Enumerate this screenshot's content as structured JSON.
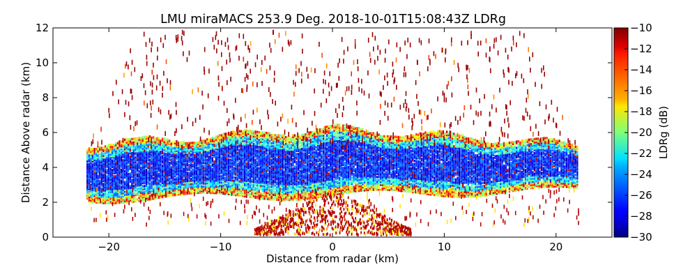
{
  "chart_data": {
    "type": "heatmap",
    "title": "LMU miraMACS 253.9 Deg. 2018-10-01T15:08:43Z  LDRg",
    "xlabel": "Distance from radar (km)",
    "ylabel": "Distance Above radar  (km)",
    "xlim": [
      -25,
      25
    ],
    "ylim": [
      0,
      12
    ],
    "xticks": [
      -20,
      -10,
      0,
      10,
      20
    ],
    "xtick_labels": [
      "−20",
      "−10",
      "0",
      "10",
      "20"
    ],
    "yticks": [
      0,
      2,
      4,
      6,
      8,
      10,
      12
    ],
    "ytick_labels": [
      "0",
      "2",
      "4",
      "6",
      "8",
      "10",
      "12"
    ],
    "colorbar": {
      "label": "LDRg (dB)",
      "range": [
        -30,
        -10
      ],
      "ticks": [
        -10,
        -12,
        -14,
        -16,
        -18,
        -20,
        -22,
        -24,
        -26,
        -28,
        -30
      ],
      "tick_labels": [
        "−10",
        "−12",
        "−14",
        "−16",
        "−18",
        "−20",
        "−22",
        "−24",
        "−26",
        "−28",
        "−30"
      ],
      "colormap": "jet"
    },
    "cloud_layer": {
      "x_range": [
        -22,
        22
      ],
      "core_base_km": 3.0,
      "core_top_km": 5.6,
      "core_ldr_db": -27,
      "edge_ldr_db": -16
    },
    "grid": false
  }
}
